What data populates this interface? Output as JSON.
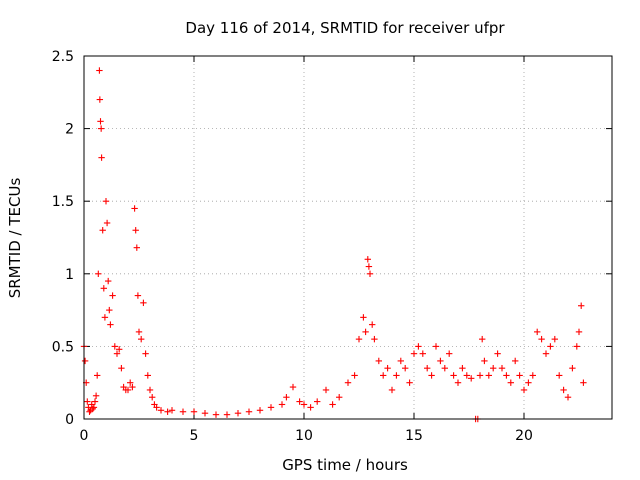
{
  "chart_data": {
    "type": "scatter",
    "title": "Day 116 of 2014, SRMTID for receiver ufpr",
    "xlabel": "GPS time / hours",
    "ylabel": "SRMTID / TECUs",
    "xlim": [
      0,
      24
    ],
    "ylim": [
      0,
      2.5
    ],
    "xticks": [
      0,
      5,
      10,
      15,
      20
    ],
    "xtick_labels": [
      "0",
      "5",
      "10",
      "15",
      "20"
    ],
    "yticks": [
      0,
      0.5,
      1,
      1.5,
      2,
      2.5
    ],
    "ytick_labels": [
      "0",
      "0.5",
      "1",
      "1.5",
      "2",
      "2.5"
    ],
    "grid": true,
    "marker": "+",
    "color": "#ff0000",
    "series": [
      {
        "name": "SRMTID",
        "x": [
          0.0,
          0.05,
          0.1,
          0.15,
          0.2,
          0.25,
          0.3,
          0.35,
          0.4,
          0.45,
          0.5,
          0.55,
          0.6,
          0.65,
          0.7,
          0.72,
          0.75,
          0.78,
          0.8,
          0.85,
          0.9,
          0.95,
          1.0,
          1.05,
          1.1,
          1.15,
          1.2,
          1.3,
          1.4,
          1.5,
          1.6,
          1.7,
          1.8,
          1.9,
          2.0,
          2.1,
          2.2,
          2.3,
          2.35,
          2.4,
          2.45,
          2.5,
          2.6,
          2.7,
          2.8,
          2.9,
          3.0,
          3.1,
          3.2,
          3.3,
          3.5,
          3.8,
          4.0,
          4.5,
          5.0,
          5.5,
          6.0,
          6.5,
          7.0,
          7.5,
          8.0,
          8.5,
          9.0,
          9.2,
          9.5,
          9.8,
          10.0,
          10.3,
          10.6,
          11.0,
          11.3,
          11.6,
          12.0,
          12.3,
          12.5,
          12.7,
          12.8,
          12.9,
          12.95,
          13.0,
          13.1,
          13.2,
          13.4,
          13.6,
          13.8,
          14.0,
          14.2,
          14.4,
          14.6,
          14.8,
          15.0,
          15.2,
          15.4,
          15.6,
          15.8,
          16.0,
          16.2,
          16.4,
          16.6,
          16.8,
          17.0,
          17.2,
          17.4,
          17.6,
          17.8,
          17.9,
          18.0,
          18.1,
          18.2,
          18.4,
          18.6,
          18.8,
          19.0,
          19.2,
          19.4,
          19.6,
          19.8,
          20.0,
          20.2,
          20.4,
          20.6,
          20.8,
          21.0,
          21.2,
          21.4,
          21.6,
          21.8,
          22.0,
          22.2,
          22.4,
          22.5,
          22.6,
          22.7
        ],
        "values": [
          0.5,
          0.4,
          0.25,
          0.12,
          0.08,
          0.05,
          0.06,
          0.1,
          0.07,
          0.08,
          0.12,
          0.16,
          0.3,
          1.0,
          2.4,
          2.2,
          2.05,
          2.0,
          1.8,
          1.3,
          0.9,
          0.7,
          1.5,
          1.35,
          0.95,
          0.75,
          0.65,
          0.85,
          0.5,
          0.45,
          0.48,
          0.35,
          0.22,
          0.2,
          0.2,
          0.25,
          0.22,
          1.45,
          1.3,
          1.18,
          0.85,
          0.6,
          0.55,
          0.8,
          0.45,
          0.3,
          0.2,
          0.15,
          0.1,
          0.08,
          0.06,
          0.05,
          0.06,
          0.05,
          0.05,
          0.04,
          0.03,
          0.03,
          0.04,
          0.05,
          0.06,
          0.08,
          0.1,
          0.15,
          0.22,
          0.12,
          0.1,
          0.08,
          0.12,
          0.2,
          0.1,
          0.15,
          0.25,
          0.3,
          0.55,
          0.7,
          0.6,
          1.1,
          1.05,
          1.0,
          0.65,
          0.55,
          0.4,
          0.3,
          0.35,
          0.2,
          0.3,
          0.4,
          0.35,
          0.25,
          0.45,
          0.5,
          0.45,
          0.35,
          0.3,
          0.5,
          0.4,
          0.35,
          0.45,
          0.3,
          0.25,
          0.35,
          0.3,
          0.28,
          0.0,
          0.0,
          0.3,
          0.55,
          0.4,
          0.3,
          0.35,
          0.45,
          0.35,
          0.3,
          0.25,
          0.4,
          0.3,
          0.2,
          0.25,
          0.3,
          0.6,
          0.55,
          0.45,
          0.5,
          0.55,
          0.3,
          0.2,
          0.15,
          0.35,
          0.5,
          0.6,
          0.78,
          0.25
        ],
        "color": "#ff0000"
      }
    ]
  }
}
